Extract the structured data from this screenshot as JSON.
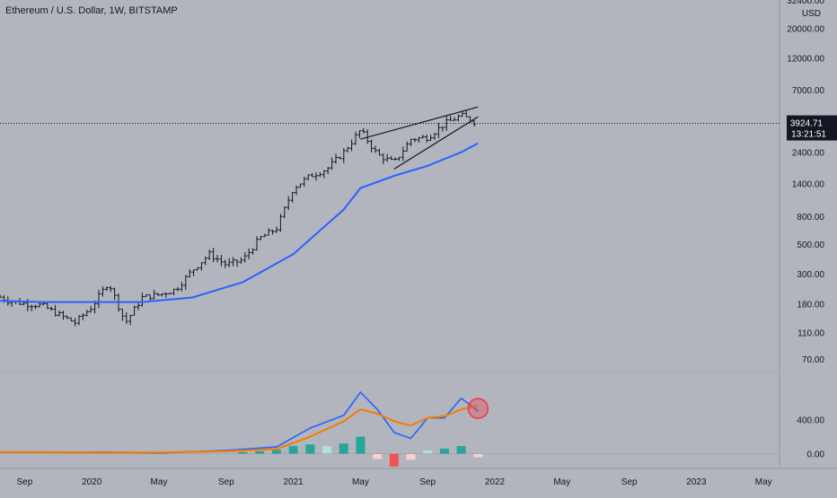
{
  "header": {
    "title": "Ethereum / U.S. Dollar, 1W, BITSTAMP"
  },
  "price_axis": {
    "currency": "USD",
    "labels": [
      "32400.00",
      "20000.00",
      "12000.00",
      "7000.00",
      "2400.00",
      "1400.00",
      "800.00",
      "500.00",
      "300.00",
      "180.00",
      "110.00",
      "70.00"
    ],
    "current_price": "3924.71",
    "countdown": "13:21:51"
  },
  "indicator_axis": {
    "labels": [
      "400.00",
      "0.00"
    ]
  },
  "time_axis": {
    "labels": [
      "Sep",
      "2020",
      "May",
      "Sep",
      "2021",
      "May",
      "Sep",
      "2022",
      "May",
      "Sep",
      "2023",
      "May"
    ]
  },
  "colors": {
    "background": "#b2b5be",
    "candle": "#131722",
    "ma_line": "#2962ff",
    "macd_line": "#2962ff",
    "signal_line": "#f57c00",
    "hist_pos_strong": "#26a69a",
    "hist_pos_weak": "#b2dfdb",
    "hist_neg_strong": "#ef5350",
    "hist_neg_weak": "#ffcdd2",
    "highlight_circle": "#f23645",
    "axis_text": "#131722"
  },
  "chart_data": [
    {
      "type": "line",
      "title": "Ethereum / U.S. Dollar, 1W, BITSTAMP",
      "scale": "log",
      "ylim": [
        60,
        32400
      ],
      "x_range": [
        "2019-07",
        "2023-07"
      ],
      "series": [
        {
          "kind": "weekly-bars",
          "dates": [
            "2019-07",
            "2019-08",
            "2019-09",
            "2019-10",
            "2019-11",
            "2019-12",
            "2020-01",
            "2020-02",
            "2020-03",
            "2020-04",
            "2020-05",
            "2020-06",
            "2020-07",
            "2020-08",
            "2020-09",
            "2020-10",
            "2020-11",
            "2020-12",
            "2021-01",
            "2021-02",
            "2021-03",
            "2021-04",
            "2021-05",
            "2021-06",
            "2021-07",
            "2021-08",
            "2021-09",
            "2021-10",
            "2021-11",
            "2021-12"
          ],
          "values": [
            215,
            190,
            180,
            175,
            150,
            130,
            170,
            260,
            130,
            200,
            210,
            230,
            320,
            420,
            350,
            380,
            550,
            650,
            1300,
            1600,
            1800,
            2400,
            3500,
            2300,
            2000,
            3000,
            3100,
            3900,
            4500,
            3924.71
          ]
        },
        {
          "kind": "moving-average",
          "dates": [
            "2019-07",
            "2019-10",
            "2020-01",
            "2020-04",
            "2020-07",
            "2020-10",
            "2021-01",
            "2021-04",
            "2021-05",
            "2021-07",
            "2021-09",
            "2021-11",
            "2021-12"
          ],
          "values": [
            190,
            185,
            185,
            185,
            200,
            260,
            420,
            900,
            1300,
            1600,
            1900,
            2400,
            2800
          ]
        },
        {
          "kind": "rising-wedge-upper",
          "dates": [
            "2021-05",
            "2021-12"
          ],
          "values": [
            3000,
            5200
          ]
        },
        {
          "kind": "rising-wedge-lower",
          "dates": [
            "2021-07",
            "2021-12"
          ],
          "values": [
            1800,
            4400
          ]
        }
      ]
    },
    {
      "type": "line",
      "ylim": [
        -150,
        900
      ],
      "series": [
        {
          "kind": "macd",
          "dates": [
            "2019-07",
            "2020-02",
            "2020-05",
            "2020-09",
            "2020-12",
            "2021-02",
            "2021-04",
            "2021-05",
            "2021-06",
            "2021-07",
            "2021-08",
            "2021-09",
            "2021-10",
            "2021-11",
            "2021-12"
          ],
          "values": [
            20,
            20,
            10,
            40,
            80,
            300,
            450,
            720,
            520,
            250,
            180,
            420,
            420,
            650,
            500
          ]
        },
        {
          "kind": "signal",
          "dates": [
            "2019-07",
            "2020-02",
            "2020-05",
            "2020-09",
            "2020-12",
            "2021-02",
            "2021-04",
            "2021-05",
            "2021-06",
            "2021-07",
            "2021-08",
            "2021-09",
            "2021-10",
            "2021-11",
            "2021-12"
          ],
          "values": [
            20,
            15,
            15,
            30,
            55,
            200,
            380,
            520,
            470,
            380,
            330,
            420,
            440,
            520,
            560
          ]
        },
        {
          "kind": "histogram",
          "dates": [
            "2020-10",
            "2020-11",
            "2020-12",
            "2021-01",
            "2021-02",
            "2021-03",
            "2021-04",
            "2021-05",
            "2021-06",
            "2021-07",
            "2021-08",
            "2021-09",
            "2021-10",
            "2021-11",
            "2021-12"
          ],
          "values": [
            20,
            30,
            45,
            90,
            110,
            90,
            120,
            200,
            -60,
            -150,
            -70,
            40,
            60,
            90,
            -40
          ]
        }
      ]
    }
  ]
}
